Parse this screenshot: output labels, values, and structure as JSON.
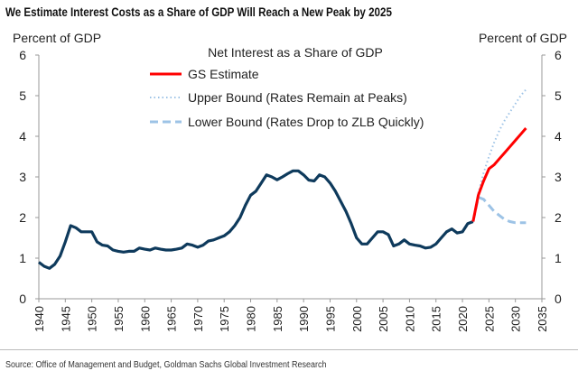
{
  "title": "We Estimate Interest Costs as a Share of GDP Will Reach a New Peak by 2025",
  "source": "Source: Office of Management and Budget, Goldman Sachs Global Investment Research",
  "chart_data": {
    "type": "line",
    "title": "Net Interest as a Share of GDP",
    "ylabel_left": "Percent of GDP",
    "ylabel_right": "Percent of GDP",
    "xlim": [
      1940,
      2035
    ],
    "ylim": [
      0,
      6
    ],
    "xticks": [
      1940,
      1945,
      1950,
      1955,
      1960,
      1965,
      1970,
      1975,
      1980,
      1985,
      1990,
      1995,
      2000,
      2005,
      2010,
      2015,
      2020,
      2025,
      2030,
      2035
    ],
    "yticks": [
      0,
      1,
      2,
      3,
      4,
      5,
      6
    ],
    "grid": false,
    "legend": "top-center",
    "colors": {
      "history": "#0e3a5c",
      "gs": "#ff0000",
      "upper": "#9dc3e6",
      "lower": "#9dc3e6"
    },
    "series": [
      {
        "x": [
          1940,
          1941,
          1942,
          1943,
          1944,
          1945,
          1946,
          1947,
          1948,
          1949,
          1950,
          1951,
          1952,
          1953,
          1954,
          1955,
          1956,
          1957,
          1958,
          1959,
          1960,
          1961,
          1962,
          1963,
          1964,
          1965,
          1966,
          1967,
          1968,
          1969,
          1970,
          1971,
          1972,
          1973,
          1974,
          1975,
          1976,
          1977,
          1978,
          1979,
          1980,
          1981,
          1982,
          1983,
          1984,
          1985,
          1986,
          1987,
          1988,
          1989,
          1990,
          1991,
          1992,
          1993,
          1994,
          1995,
          1996,
          1997,
          1998,
          1999,
          2000,
          2001,
          2002,
          2003,
          2004,
          2005,
          2006,
          2007,
          2008,
          2009,
          2010,
          2011,
          2012,
          2013,
          2014,
          2015,
          2016,
          2017,
          2018,
          2019,
          2020,
          2021,
          2022
        ],
        "values": [
          0.9,
          0.8,
          0.75,
          0.85,
          1.05,
          1.4,
          1.8,
          1.75,
          1.65,
          1.65,
          1.65,
          1.4,
          1.32,
          1.3,
          1.2,
          1.17,
          1.15,
          1.17,
          1.17,
          1.25,
          1.22,
          1.2,
          1.25,
          1.22,
          1.2,
          1.2,
          1.22,
          1.25,
          1.35,
          1.32,
          1.27,
          1.32,
          1.42,
          1.45,
          1.5,
          1.55,
          1.65,
          1.8,
          2.0,
          2.3,
          2.55,
          2.65,
          2.85,
          3.05,
          3.0,
          2.93,
          3.0,
          3.08,
          3.15,
          3.15,
          3.05,
          2.92,
          2.9,
          3.05,
          3.0,
          2.85,
          2.65,
          2.4,
          2.15,
          1.85,
          1.5,
          1.35,
          1.35,
          1.5,
          1.65,
          1.65,
          1.58,
          1.3,
          1.35,
          1.45,
          1.35,
          1.32,
          1.3,
          1.25,
          1.27,
          1.35,
          1.5,
          1.65,
          1.72,
          1.62,
          1.65,
          1.85,
          1.9
        ]
      },
      {
        "name": "GS Estimate",
        "x": [
          2022,
          2023,
          2024,
          2025,
          2026,
          2027,
          2028,
          2029,
          2030,
          2031,
          2032
        ],
        "values": [
          1.9,
          2.55,
          2.9,
          3.2,
          3.3,
          3.45,
          3.6,
          3.75,
          3.9,
          4.05,
          4.2
        ]
      },
      {
        "name": "Upper Bound (Rates Remain at Peaks)",
        "x": [
          2022,
          2023,
          2024,
          2025,
          2026,
          2027,
          2028,
          2029,
          2030,
          2031,
          2032
        ],
        "values": [
          1.9,
          2.6,
          3.1,
          3.5,
          3.85,
          4.15,
          4.4,
          4.6,
          4.8,
          5.0,
          5.15
        ]
      },
      {
        "name": "Lower Bound (Rates Drop to ZLB Quickly)",
        "x": [
          2022,
          2023,
          2024,
          2025,
          2026,
          2027,
          2028,
          2029,
          2030,
          2031,
          2032
        ],
        "values": [
          1.9,
          2.5,
          2.45,
          2.3,
          2.15,
          2.05,
          1.95,
          1.9,
          1.87,
          1.87,
          1.87
        ]
      }
    ]
  }
}
